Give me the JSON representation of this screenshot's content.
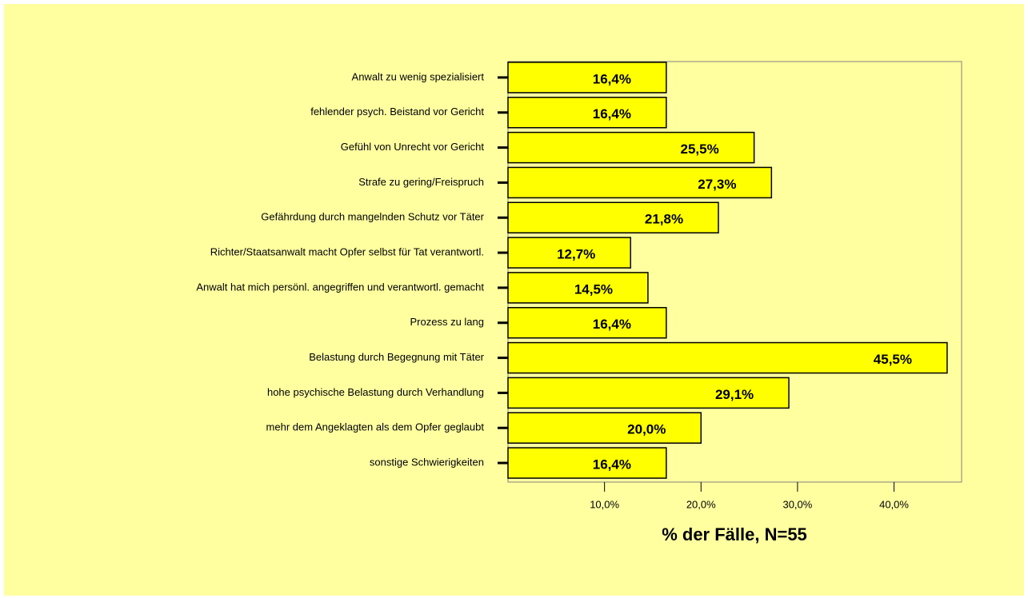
{
  "chart_data": {
    "type": "bar",
    "orientation": "horizontal",
    "categories": [
      "Anwalt zu wenig spezialisiert",
      "fehlender psych. Beistand vor Gericht",
      "Gefühl von Unrecht vor Gericht",
      "Strafe zu gering/Freispruch",
      "Gefährdung durch mangelnden Schutz vor Täter",
      "Richter/Staatsanwalt macht Opfer selbst für Tat verantwortl.",
      "Anwalt hat mich persönl. angegriffen und verantwortl. gemacht",
      "Prozess zu lang",
      "Belastung durch Begegnung mit Täter",
      "hohe psychische Belastung durch Verhandlung",
      "mehr dem Angeklagten als dem Opfer geglaubt",
      "sonstige Schwierigkeiten"
    ],
    "values": [
      16.4,
      16.4,
      25.5,
      27.3,
      21.8,
      12.7,
      14.5,
      16.4,
      45.5,
      29.1,
      20.0,
      16.4
    ],
    "value_labels": [
      "16,4%",
      "16,4%",
      "25,5%",
      "27,3%",
      "21,8%",
      "12,7%",
      "14,5%",
      "16,4%",
      "45,5%",
      "29,1%",
      "20,0%",
      "16,4%"
    ],
    "color": "#ffff00",
    "xlabel": "% der Fälle, N=55",
    "xlim": [
      0,
      47
    ],
    "xticks": [
      {
        "value": 10,
        "label": "10,0%"
      },
      {
        "value": 20,
        "label": "20,0%"
      },
      {
        "value": 30,
        "label": "30,0%"
      },
      {
        "value": 40,
        "label": "40,0%"
      }
    ]
  }
}
